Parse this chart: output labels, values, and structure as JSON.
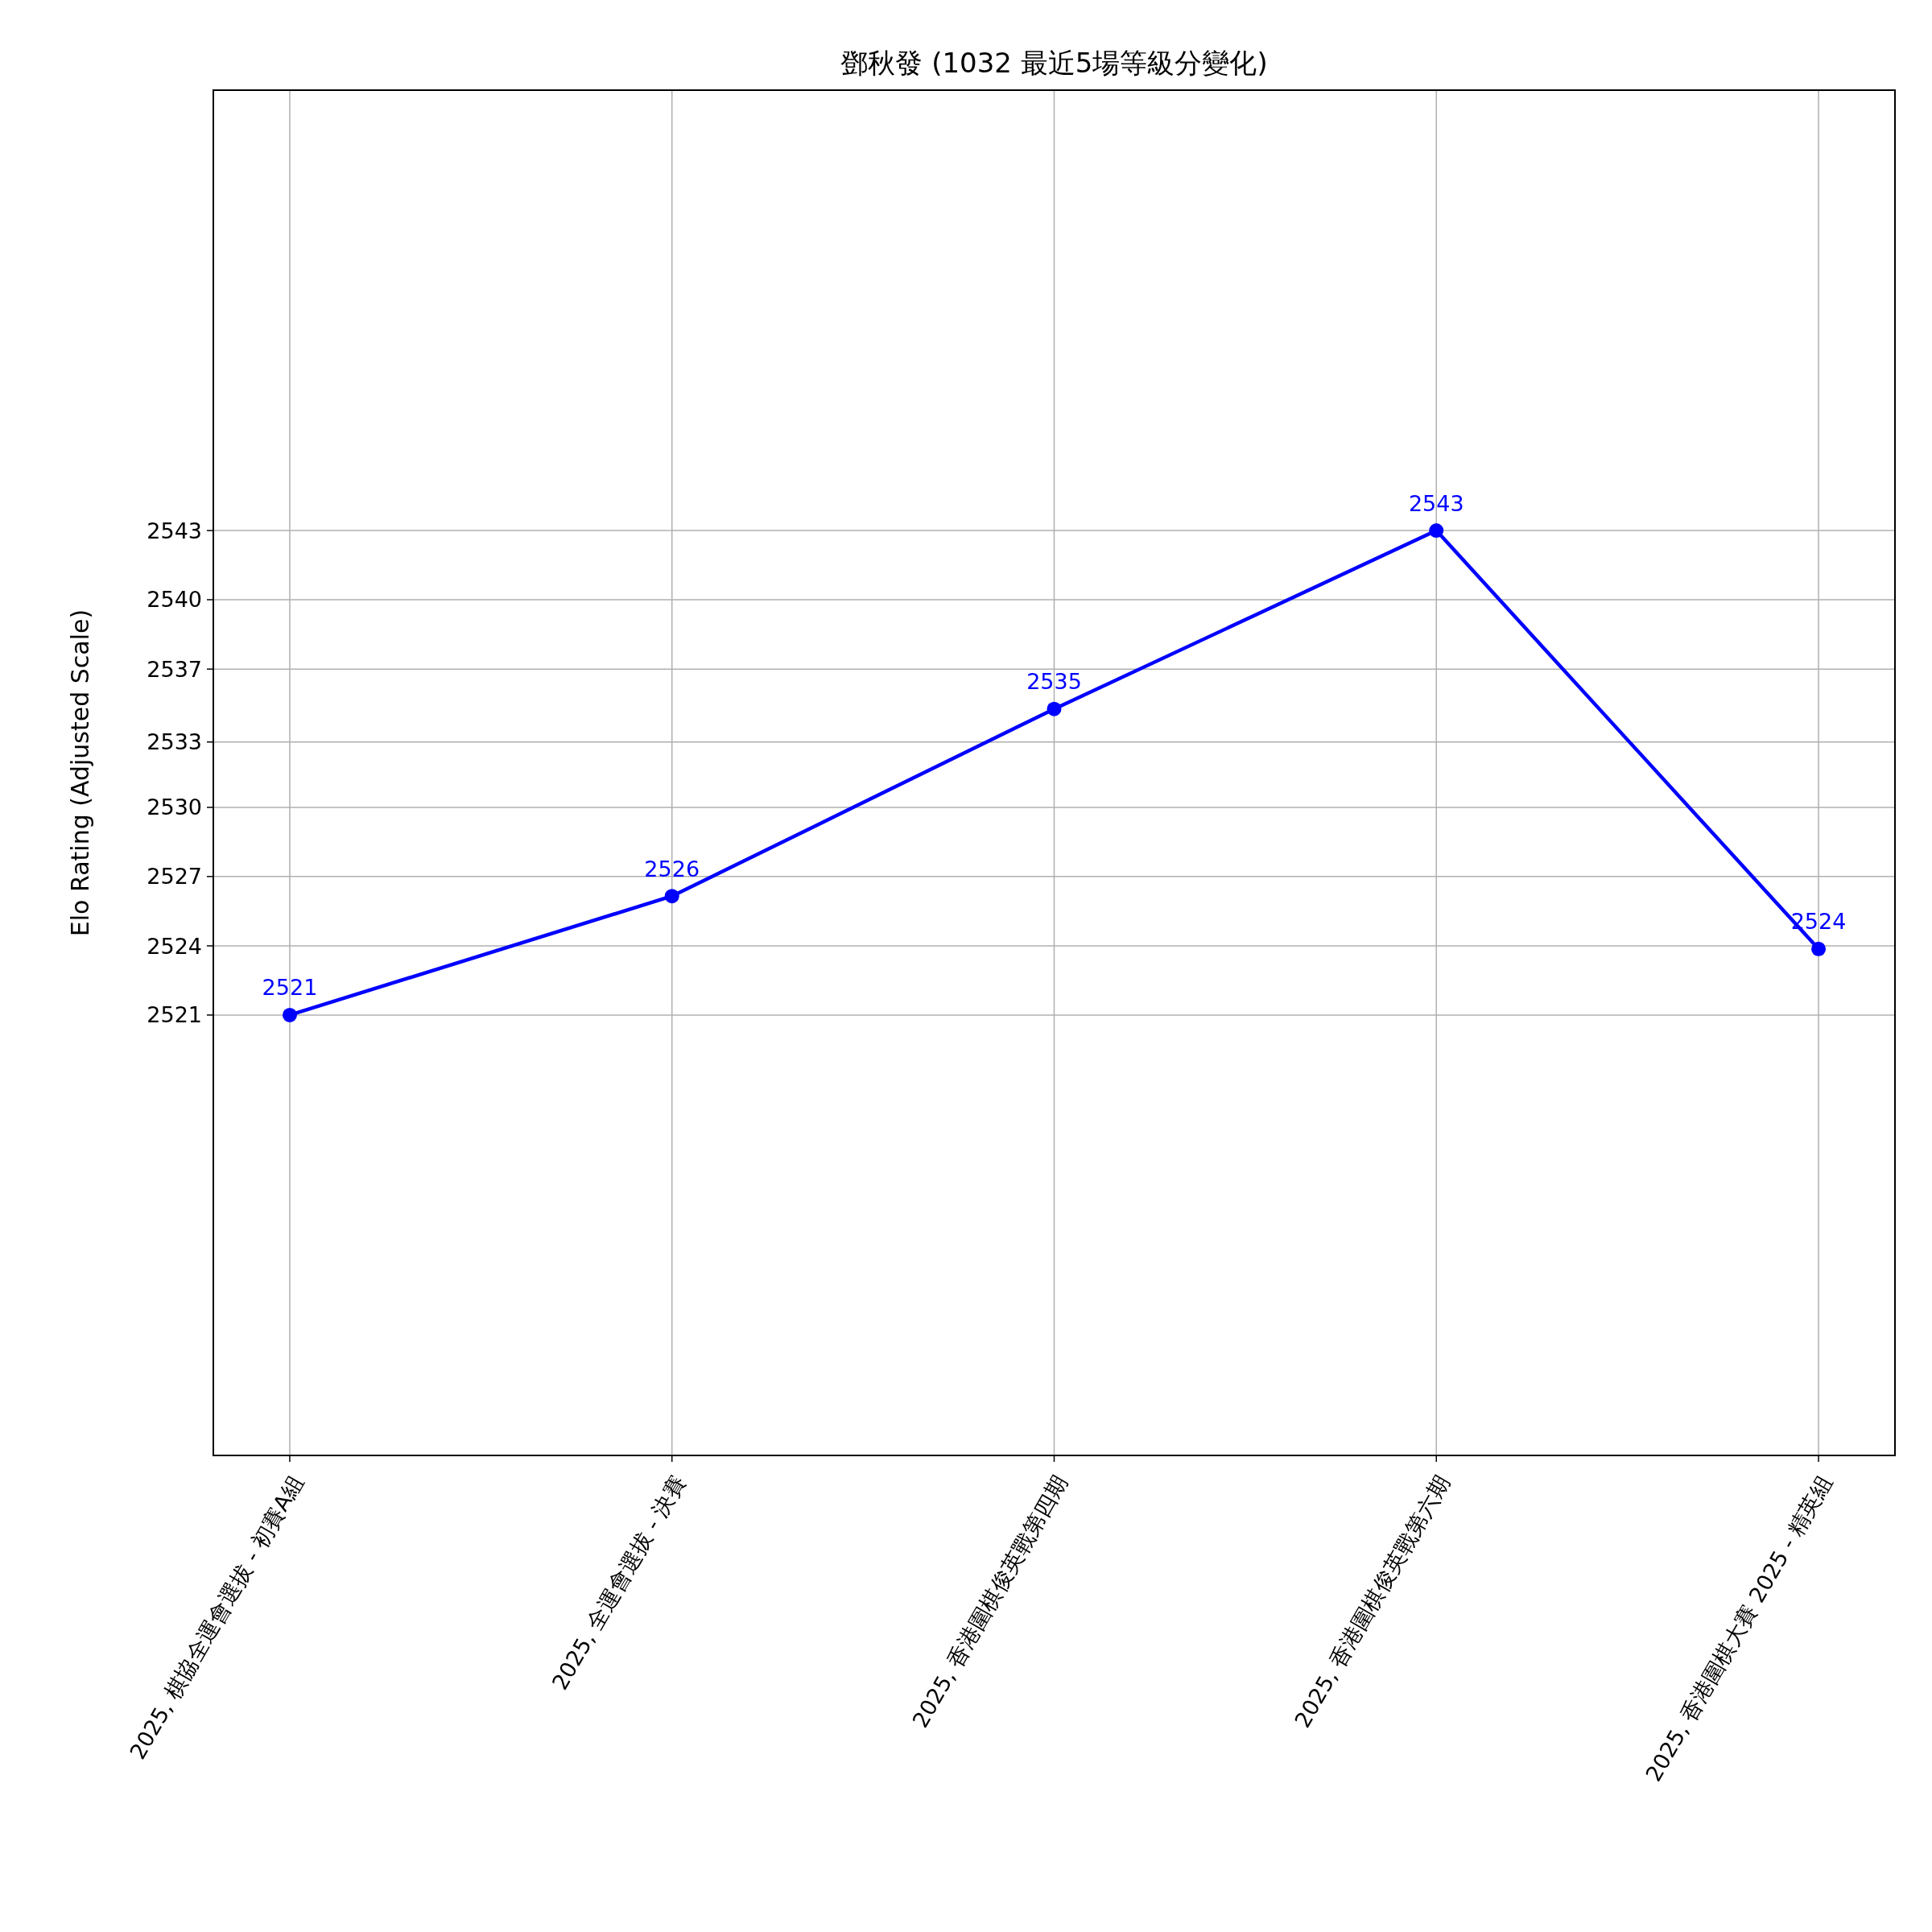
{
  "chart_data": {
    "type": "line",
    "title": "鄧秋發 (1032 最近5場等級分變化)",
    "ylabel": "Elo Rating (Adjusted Scale)",
    "categories": [
      "2025, 棋協全運會選拔 - 初賽A組",
      "2025, 全運會選拔 - 決賽",
      "2025, 香港圍棋俊英戰第四期",
      "2025, 香港圍棋俊英戰第六期",
      "2025, 香港圍棋大賽 2025 - 精英組"
    ],
    "series": [
      {
        "color": "#0000ff",
        "values": [
          2521,
          2526.4,
          2534.9,
          2543,
          2524
        ],
        "value_labels": [
          "2521",
          "2526",
          "2535",
          "2543",
          "2524"
        ]
      }
    ],
    "ylim": [
      2501,
      2563
    ],
    "yticks": [
      {
        "value": 2521,
        "label": "2521"
      },
      {
        "value": 2524.14,
        "label": "2524"
      },
      {
        "value": 2527.29,
        "label": "2527"
      },
      {
        "value": 2530.43,
        "label": "2530"
      },
      {
        "value": 2533.4,
        "label": "2533"
      },
      {
        "value": 2536.71,
        "label": "2537"
      },
      {
        "value": 2539.86,
        "label": "2540"
      },
      {
        "value": 2543,
        "label": "2543"
      }
    ],
    "grid": true,
    "marker": "circle",
    "line_style": "solid"
  }
}
